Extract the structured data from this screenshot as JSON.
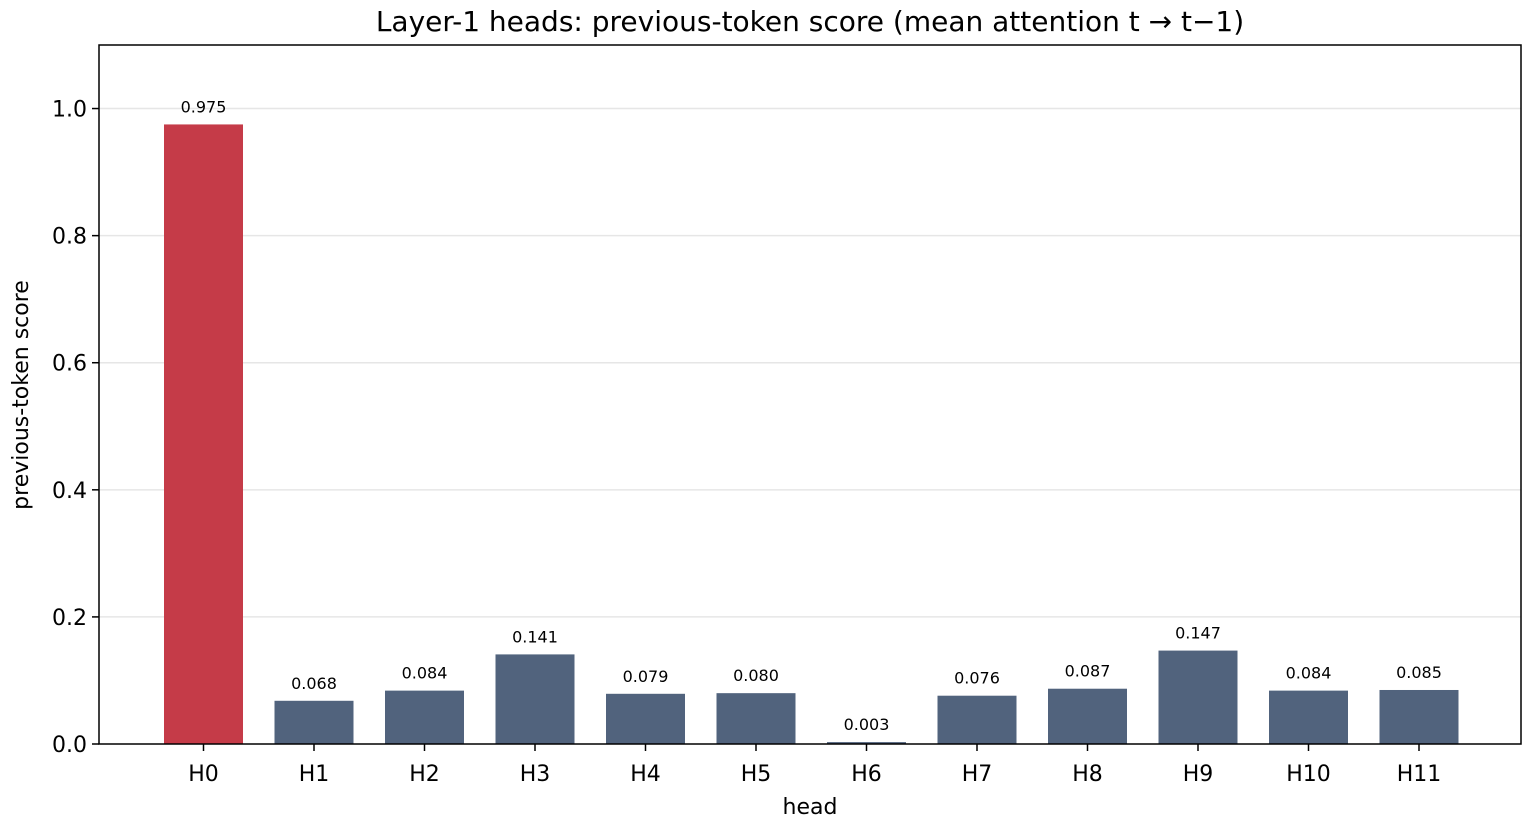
{
  "chart_data": {
    "type": "bar",
    "title": "Layer-1 heads: previous-token score  (mean attention t → t−1)",
    "xlabel": "head",
    "ylabel": "previous-token score",
    "categories": [
      "H0",
      "H1",
      "H2",
      "H3",
      "H4",
      "H5",
      "H6",
      "H7",
      "H8",
      "H9",
      "H10",
      "H11"
    ],
    "values": [
      0.975,
      0.068,
      0.084,
      0.141,
      0.079,
      0.08,
      0.003,
      0.076,
      0.087,
      0.147,
      0.084,
      0.085
    ],
    "data_labels": [
      "0.975",
      "0.068",
      "0.084",
      "0.141",
      "0.079",
      "0.080",
      "0.003",
      "0.076",
      "0.087",
      "0.147",
      "0.084",
      "0.085"
    ],
    "ylim": [
      0,
      1.1
    ],
    "yticks": [
      0.0,
      0.2,
      0.4,
      0.6,
      0.8,
      1.0
    ],
    "ytick_labels": [
      "0.0",
      "0.2",
      "0.4",
      "0.6",
      "0.8",
      "1.0"
    ],
    "grid": "horizontal",
    "highlight_index": 0,
    "colors": {
      "highlight": "#c53b48",
      "default": "#51637d",
      "grid": "#e6e6e6",
      "axis": "#000000"
    }
  }
}
